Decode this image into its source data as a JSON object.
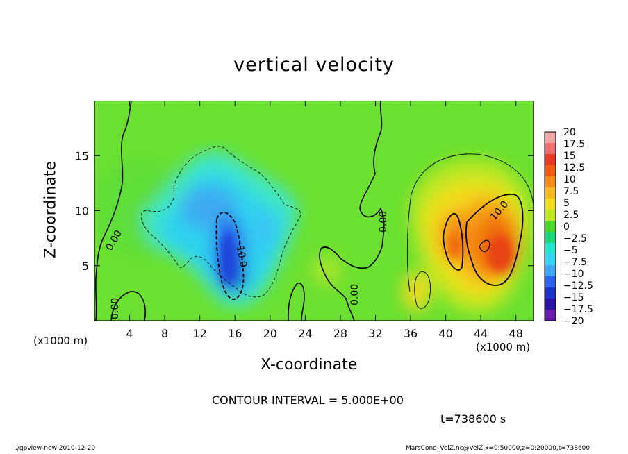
{
  "chart_data": {
    "type": "heatmap",
    "title": "vertical velocity",
    "xlabel": "X-coordinate",
    "ylabel": "Z-coordinate",
    "x_unit_label": "(x1000 m)",
    "xlim": [
      0,
      50
    ],
    "ylim": [
      0,
      20
    ],
    "x_ticks": [
      4,
      8,
      12,
      16,
      20,
      24,
      28,
      32,
      36,
      40,
      44,
      48
    ],
    "y_ticks": [
      5,
      10,
      15
    ],
    "colorbar": {
      "labels": [
        "20",
        "17.5",
        "15",
        "12.5",
        "10",
        "7.5",
        "5",
        "2.5",
        "0",
        "−2.5",
        "−5",
        "−7.5",
        "−10",
        "−12.5",
        "−15",
        "−17.5",
        "−20"
      ],
      "colors": [
        "#f4a6a6",
        "#ef6e6e",
        "#e83a22",
        "#f25a12",
        "#f58c14",
        "#f7b820",
        "#f2dc1e",
        "#bde81e",
        "#4cd628",
        "#18d87a",
        "#1ee6d0",
        "#33d4f6",
        "#40a8f4",
        "#2a62ee",
        "#1a36cc",
        "#2a14a8",
        "#6a1cb0"
      ]
    },
    "contour_interval": "CONTOUR INTERVAL = 5.000E+00",
    "contour_labels": [
      "0.00",
      "0.00",
      "0.00",
      "0.00",
      "-10.0",
      "10.0"
    ],
    "field_features": [
      {
        "kind": "downdraft",
        "x": 15.5,
        "z": 6.5,
        "value": -14
      },
      {
        "kind": "updraft",
        "x": 45,
        "z": 6.5,
        "value": 13
      },
      {
        "kind": "updraft",
        "x": 39.5,
        "z": 7.5,
        "value": 10
      },
      {
        "kind": "weak_downdraft",
        "x": 13,
        "z": 11,
        "value": -6
      }
    ],
    "time_label": "t=738600 s"
  },
  "footer": {
    "left": "./gpview-new   2010-12-20",
    "right": "MarsCond_VelZ.nc@VelZ,x=0:50000,z=0:20000,t=738600"
  }
}
